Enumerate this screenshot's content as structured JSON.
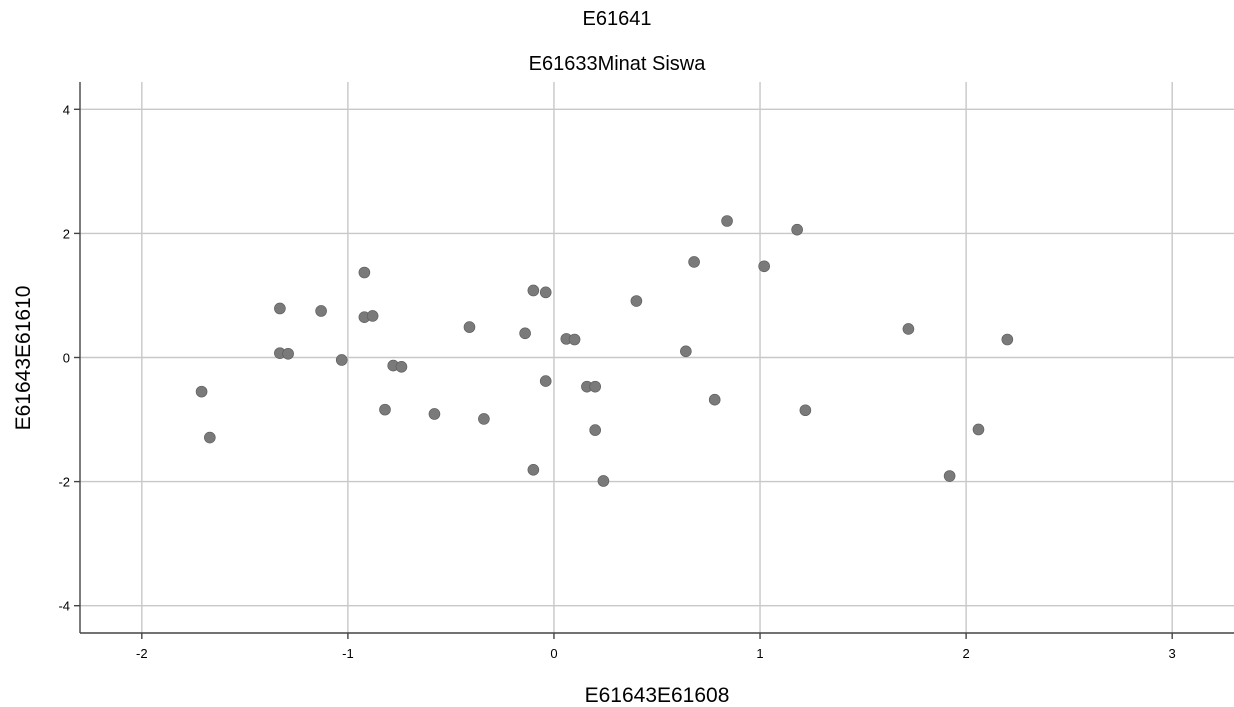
{
  "chart_data": {
    "type": "scatter",
    "title": "E61641",
    "subtitle": "E61633Minat Siswa",
    "xlabel": "E61643E61608",
    "ylabel": "E61643E61610",
    "xlim": [
      -2.3,
      3.3
    ],
    "ylim": [
      -4.44,
      4.44
    ],
    "xticks": [
      -2,
      -1,
      0,
      1,
      2,
      3
    ],
    "yticks": [
      4,
      2,
      0,
      -2,
      -4
    ],
    "grid": true,
    "point_color": "#7a7a7a",
    "points": [
      {
        "x": -1.71,
        "y": -0.55
      },
      {
        "x": -1.67,
        "y": -1.29
      },
      {
        "x": -1.33,
        "y": 0.79
      },
      {
        "x": -1.33,
        "y": 0.07
      },
      {
        "x": -1.29,
        "y": 0.06
      },
      {
        "x": -1.13,
        "y": 0.75
      },
      {
        "x": -1.03,
        "y": -0.04
      },
      {
        "x": -0.92,
        "y": 1.37
      },
      {
        "x": -0.92,
        "y": 0.65
      },
      {
        "x": -0.88,
        "y": 0.67
      },
      {
        "x": -0.82,
        "y": -0.84
      },
      {
        "x": -0.78,
        "y": -0.13
      },
      {
        "x": -0.74,
        "y": -0.15
      },
      {
        "x": -0.58,
        "y": -0.91
      },
      {
        "x": -0.41,
        "y": 0.49
      },
      {
        "x": -0.34,
        "y": -0.99
      },
      {
        "x": -0.14,
        "y": 0.39
      },
      {
        "x": -0.1,
        "y": 1.08
      },
      {
        "x": -0.1,
        "y": -1.81
      },
      {
        "x": -0.04,
        "y": 1.05
      },
      {
        "x": -0.04,
        "y": -0.38
      },
      {
        "x": 0.06,
        "y": 0.3
      },
      {
        "x": 0.1,
        "y": 0.29
      },
      {
        "x": 0.16,
        "y": -0.47
      },
      {
        "x": 0.2,
        "y": -0.47
      },
      {
        "x": 0.2,
        "y": -1.17
      },
      {
        "x": 0.24,
        "y": -1.99
      },
      {
        "x": 0.4,
        "y": 0.91
      },
      {
        "x": 0.64,
        "y": 0.1
      },
      {
        "x": 0.68,
        "y": 1.54
      },
      {
        "x": 0.78,
        "y": -0.68
      },
      {
        "x": 0.84,
        "y": 2.2
      },
      {
        "x": 1.02,
        "y": 1.47
      },
      {
        "x": 1.18,
        "y": 2.06
      },
      {
        "x": 1.22,
        "y": -0.85
      },
      {
        "x": 1.72,
        "y": 0.46
      },
      {
        "x": 1.92,
        "y": -1.91
      },
      {
        "x": 2.06,
        "y": -1.16
      },
      {
        "x": 2.2,
        "y": 0.29
      }
    ]
  }
}
